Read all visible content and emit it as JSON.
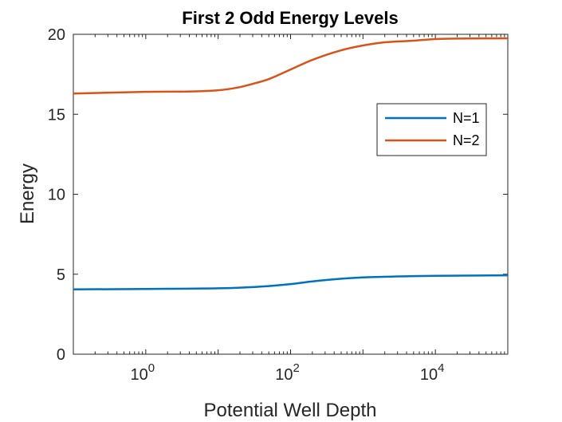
{
  "chart_data": {
    "type": "line",
    "title": "First 2 Odd Energy Levels",
    "xlabel": "Potential Well Depth",
    "ylabel": "Energy",
    "xscale": "log",
    "xlim": [
      0.1,
      100000
    ],
    "ylim": [
      0,
      20
    ],
    "grid": false,
    "legend_position": "right",
    "xticks": [
      {
        "value": 1,
        "base": "10",
        "exp": "0"
      },
      {
        "value": 100,
        "base": "10",
        "exp": "2"
      },
      {
        "value": 10000,
        "base": "10",
        "exp": "4"
      }
    ],
    "yticks": [
      "0",
      "5",
      "10",
      "15",
      "20"
    ],
    "series": [
      {
        "name": "N=1",
        "color": "#0072BD",
        "x": [
          0.1,
          1,
          10,
          20,
          50,
          100,
          200,
          500,
          1000,
          3000,
          10000,
          100000
        ],
        "y": [
          4.05,
          4.08,
          4.12,
          4.16,
          4.26,
          4.38,
          4.55,
          4.72,
          4.8,
          4.86,
          4.9,
          4.93
        ]
      },
      {
        "name": "N=2",
        "color": "#D95319",
        "x": [
          0.1,
          1,
          10,
          20,
          30,
          50,
          100,
          200,
          500,
          1000,
          2000,
          5000,
          10000,
          100000
        ],
        "y": [
          16.3,
          16.4,
          16.5,
          16.7,
          16.9,
          17.2,
          17.8,
          18.4,
          19.0,
          19.3,
          19.5,
          19.6,
          19.7,
          19.75
        ]
      }
    ]
  }
}
